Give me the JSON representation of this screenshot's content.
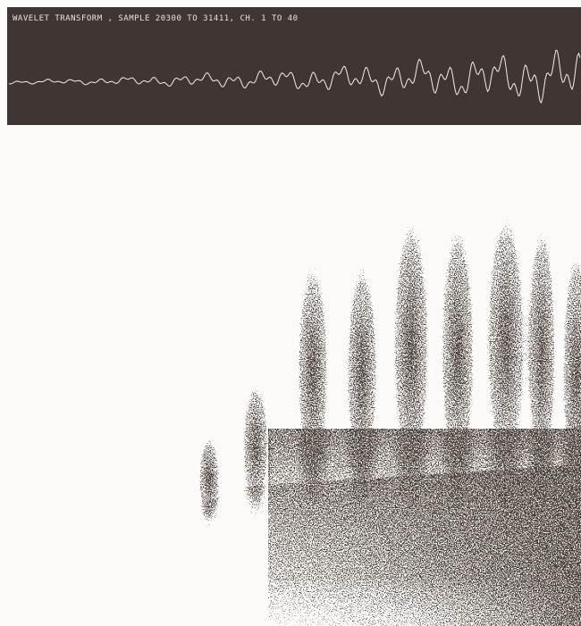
{
  "header": {
    "title": "WAVELET TRANSFORM , SAMPLE 20300 TO 31411, CH. 1 TO 40"
  }
}
